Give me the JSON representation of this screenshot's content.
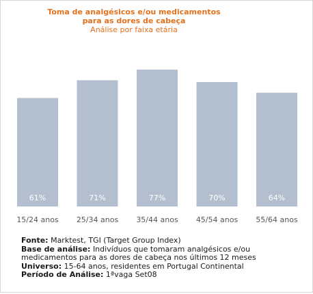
{
  "chart_data": {
    "type": "bar",
    "title_lines": [
      "Toma de analgésicos e/ou medicamentos",
      "para as dores de cabeça"
    ],
    "subtitle": "Análise por faixa etária",
    "categories": [
      "15/24 anos",
      "25/34 anos",
      "35/44 anos",
      "45/54 anos",
      "55/64 anos"
    ],
    "values": [
      61,
      71,
      77,
      70,
      64
    ],
    "value_labels": [
      "61%",
      "71%",
      "77%",
      "70%",
      "64%"
    ],
    "ylim": [
      0,
      100
    ],
    "grid": false,
    "legend": "none"
  },
  "colors": {
    "bar": "#b3bfcf",
    "bar_label": "#ffffff",
    "title": "#e2711d",
    "axis_label": "#555555"
  },
  "footnote": {
    "fonte_label": "Fonte:",
    "fonte_value": "Marktest, TGI (Target Group Index)",
    "base_label": "Base de análise:",
    "base_value_1": "Indivíduos que tomaram analgésicos e/ou",
    "base_value_2": "medicamentos para as dores de cabeça nos últimos 12 meses",
    "universo_label": "Universo:",
    "universo_value": "15-64 anos, residentes em Portugal Continental",
    "periodo_label": "Período de Análise:",
    "periodo_value": "1ªvaga Set08"
  }
}
